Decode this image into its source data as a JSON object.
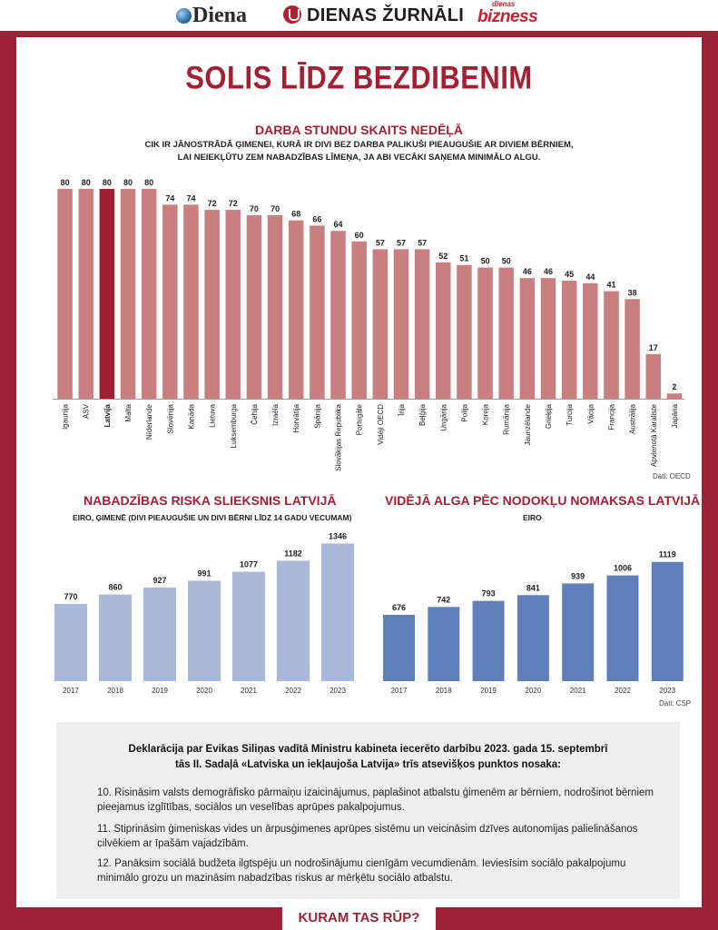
{
  "header": {
    "logos": [
      "Diena",
      "DIENAS ŽURNĀLI",
      "dienas bizness"
    ],
    "diena": "Diena",
    "dz": "DIENAS ŽURNĀLI",
    "biz_small": "dienas",
    "biz_big": "bizness"
  },
  "main_title": "SOLIS LĪDZ BEZDIBENIM",
  "chart_data": [
    {
      "type": "bar",
      "title": "DARBA STUNDU SKAITS NEDĒĻĀ",
      "subtitle": "CIK IR JĀNOSTRĀDĀ ĢIMENEI, KURĀ IR DIVI BEZ DARBA PALIKUŠI PIEAUGUŠIE AR DIVIEM BĒRNIEM, LAI NEIEKĻŪTU ZEM NABADZĪBAS LĪMEŅA, JA ABI VECĀKI SAŅEMA MINIMĀLO ALGU.",
      "subtitle_lines": [
        "CIK IR JĀNOSTRĀDĀ ĢIMENEI, KURĀ IR DIVI BEZ DARBA PALIKUŠI PIEAUGUŠIE AR DIVIEM BĒRNIEM,",
        "LAI NEIEKĻŪTU ZEM NABADZĪBAS LĪMEŅA, JA ABI VECĀKI SAŅEMA MINIMĀLO ALGU."
      ],
      "categories": [
        "Igaunija",
        "ASV",
        "Latvija",
        "Malta",
        "Nīderlande",
        "Slovēnija",
        "Kanāda",
        "Lietuva",
        "Luksemburga",
        "Čehija",
        "Izraēla",
        "Horvātija",
        "Spānija",
        "Slovākijas Republika",
        "Portugāle",
        "Vidēji OECD",
        "Īrija",
        "Beļģija",
        "Ungārija",
        "Polija",
        "Koreja",
        "Rumānija",
        "Jaunzēlande",
        "Grieķija",
        "Turcija",
        "Vācija",
        "Francija",
        "Austrālija",
        "Apvienotā Karaliste",
        "Japāna"
      ],
      "values": [
        80,
        80,
        80,
        80,
        80,
        74,
        74,
        72,
        72,
        70,
        70,
        68,
        66,
        64,
        60,
        57,
        57,
        57,
        52,
        51,
        50,
        50,
        46,
        46,
        45,
        44,
        41,
        38,
        17,
        2
      ],
      "highlight": "Latvija",
      "ylim": [
        0,
        80
      ],
      "colors": {
        "bar": "#c97f7f",
        "highlight": "#a01e30"
      },
      "source": "Dati: OECD"
    },
    {
      "type": "bar",
      "title": "NABADZĪBAS RISKA SLIEKSNIS LATVIJĀ",
      "subtitle": "EIRO, ĢIMENĒ (DIVI PIEAUGUŠIE UN DIVI BĒRNI LĪDZ 14 GADU VECUMAM)",
      "categories": [
        "2017",
        "2018",
        "2019",
        "2020",
        "2021",
        "2022",
        "2023"
      ],
      "values": [
        770,
        860,
        927,
        991,
        1077,
        1182,
        1346
      ],
      "color": "#a8b9dc"
    },
    {
      "type": "bar",
      "title": "VIDĒJĀ ALGA PĒC NODOKĻU NOMAKSAS LATVIJĀ",
      "subtitle": "EIRO",
      "categories": [
        "2017",
        "2018",
        "2019",
        "2020",
        "2021",
        "2022",
        "2023"
      ],
      "values": [
        676,
        742,
        793,
        841,
        939,
        1006,
        1119
      ],
      "color": "#5f7fba",
      "source": "Dati: CSP"
    }
  ],
  "declaration": {
    "heading_lines": [
      "Deklarācija par Evikas Siliņas vadītā Ministru kabineta iecerēto darbību 2023. gada 15. septembrī",
      "tās II. Sadaļā «Latviska un iekļaujoša Latvija» trīs atsevišķos punktos nosaka:"
    ],
    "items": [
      "10. Risināsim valsts demogrāfisko pārmaiņu izaicinājumus, paplašinot atbalstu ģimenēm ar bērniem, nodrošinot bērniem pieejamus izglītības, sociālos un veselības aprūpes pakalpojumus.",
      "11. Stiprināsim ģimeniskas vides un ārpusģimenes aprūpes sistēmu un veicināsim dzīves autonomijas palielināšanos cilvēkiem ar īpašām vajadzībām.",
      "12. Panāksim sociālā budžeta ilgtspēju un nodrošinājumu cienīgām vecumdienām. Ieviesīsim sociālo pakalpojumu minimālo grozu un mazināsim nabadzības riskus ar mērķētu sociālo atbalstu."
    ]
  },
  "footer": "KURAM TAS RŪP?"
}
